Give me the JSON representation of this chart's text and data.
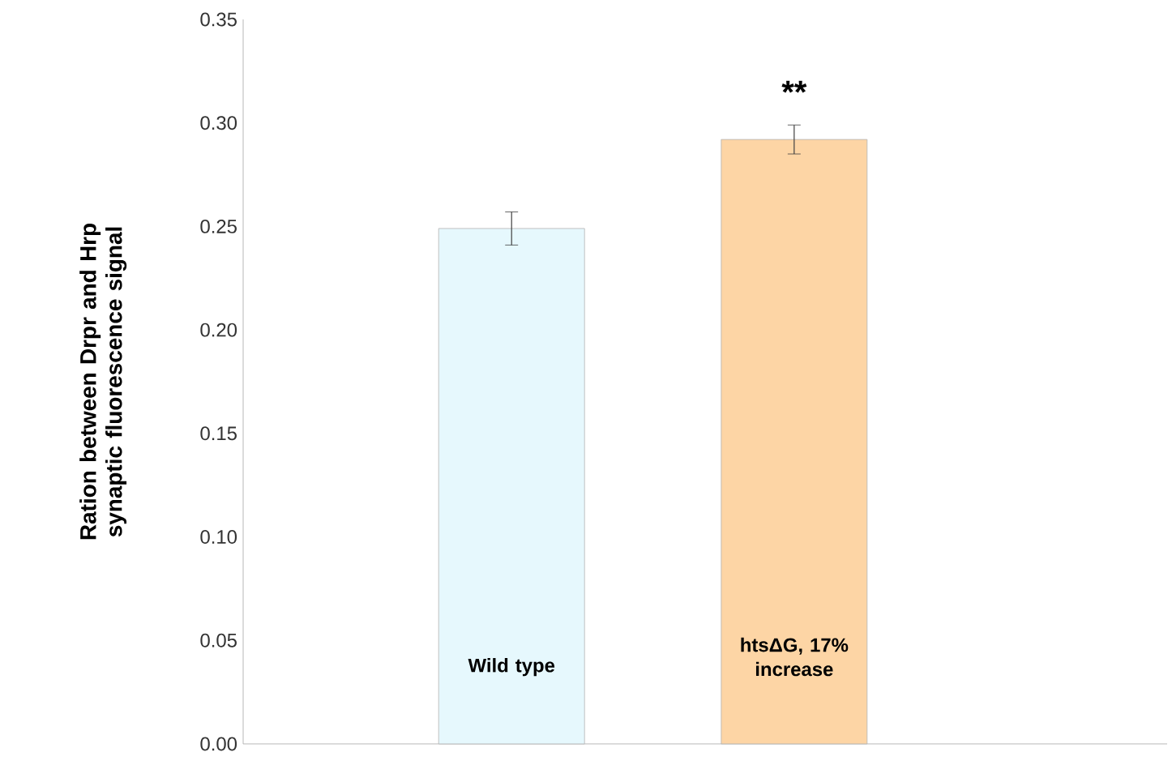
{
  "chart_data": {
    "type": "bar",
    "ylabel": "Ration between Drpr and Hrp synaptic fluorescence signal",
    "categories": [
      "Wild type",
      "htsΔG, 17% increase"
    ],
    "values": [
      0.249,
      0.292
    ],
    "errors": [
      0.008,
      0.007
    ],
    "colors": [
      "#e6f8fd",
      "#fdd5a5"
    ],
    "ylim": [
      0,
      0.35
    ],
    "yticks": [
      {
        "value": 0,
        "label": "0.00"
      },
      {
        "value": 0.05,
        "label": "0.05"
      },
      {
        "value": 0.1,
        "label": "0.10"
      },
      {
        "value": 0.15,
        "label": "0.15"
      },
      {
        "value": 0.2,
        "label": "0.20"
      },
      {
        "value": 0.25,
        "label": "0.25"
      },
      {
        "value": 0.3,
        "label": "0.30"
      },
      {
        "value": 0.35,
        "label": "0.35"
      }
    ],
    "annotations": [
      "**"
    ],
    "grid": false,
    "legend": false
  }
}
